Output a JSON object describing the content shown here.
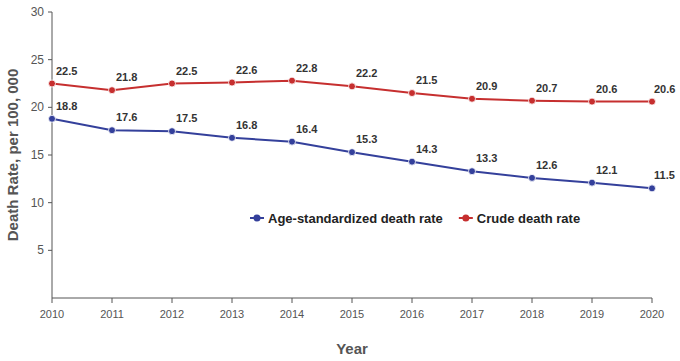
{
  "chart_data": {
    "type": "line",
    "x_label": "Year",
    "y_label": "Death Rate, per 100, 000",
    "x": [
      2010,
      2011,
      2012,
      2013,
      2014,
      2015,
      2016,
      2017,
      2018,
      2019,
      2020
    ],
    "series": [
      {
        "name": "Age-standardized death rate",
        "color": "#34409b",
        "marker": "circle",
        "line_style": "solid",
        "values": [
          18.8,
          17.6,
          17.5,
          16.8,
          16.4,
          15.3,
          14.3,
          13.3,
          12.6,
          12.1,
          11.5
        ]
      },
      {
        "name": "Crude death rate",
        "color": "#c62f2f",
        "marker": "circle",
        "line_style": "solid",
        "values": [
          22.5,
          21.8,
          22.5,
          22.6,
          22.8,
          22.2,
          21.5,
          20.9,
          20.7,
          20.6,
          20.6
        ]
      }
    ],
    "xlim": [
      2010,
      2020
    ],
    "xticks": [
      2010,
      2011,
      2012,
      2013,
      2014,
      2015,
      2016,
      2017,
      2018,
      2019,
      2020
    ],
    "ylim": [
      0,
      30
    ],
    "yticks": [
      5,
      10,
      15,
      20,
      25,
      30
    ],
    "grid": false,
    "legend": "right",
    "data_labels": true
  }
}
